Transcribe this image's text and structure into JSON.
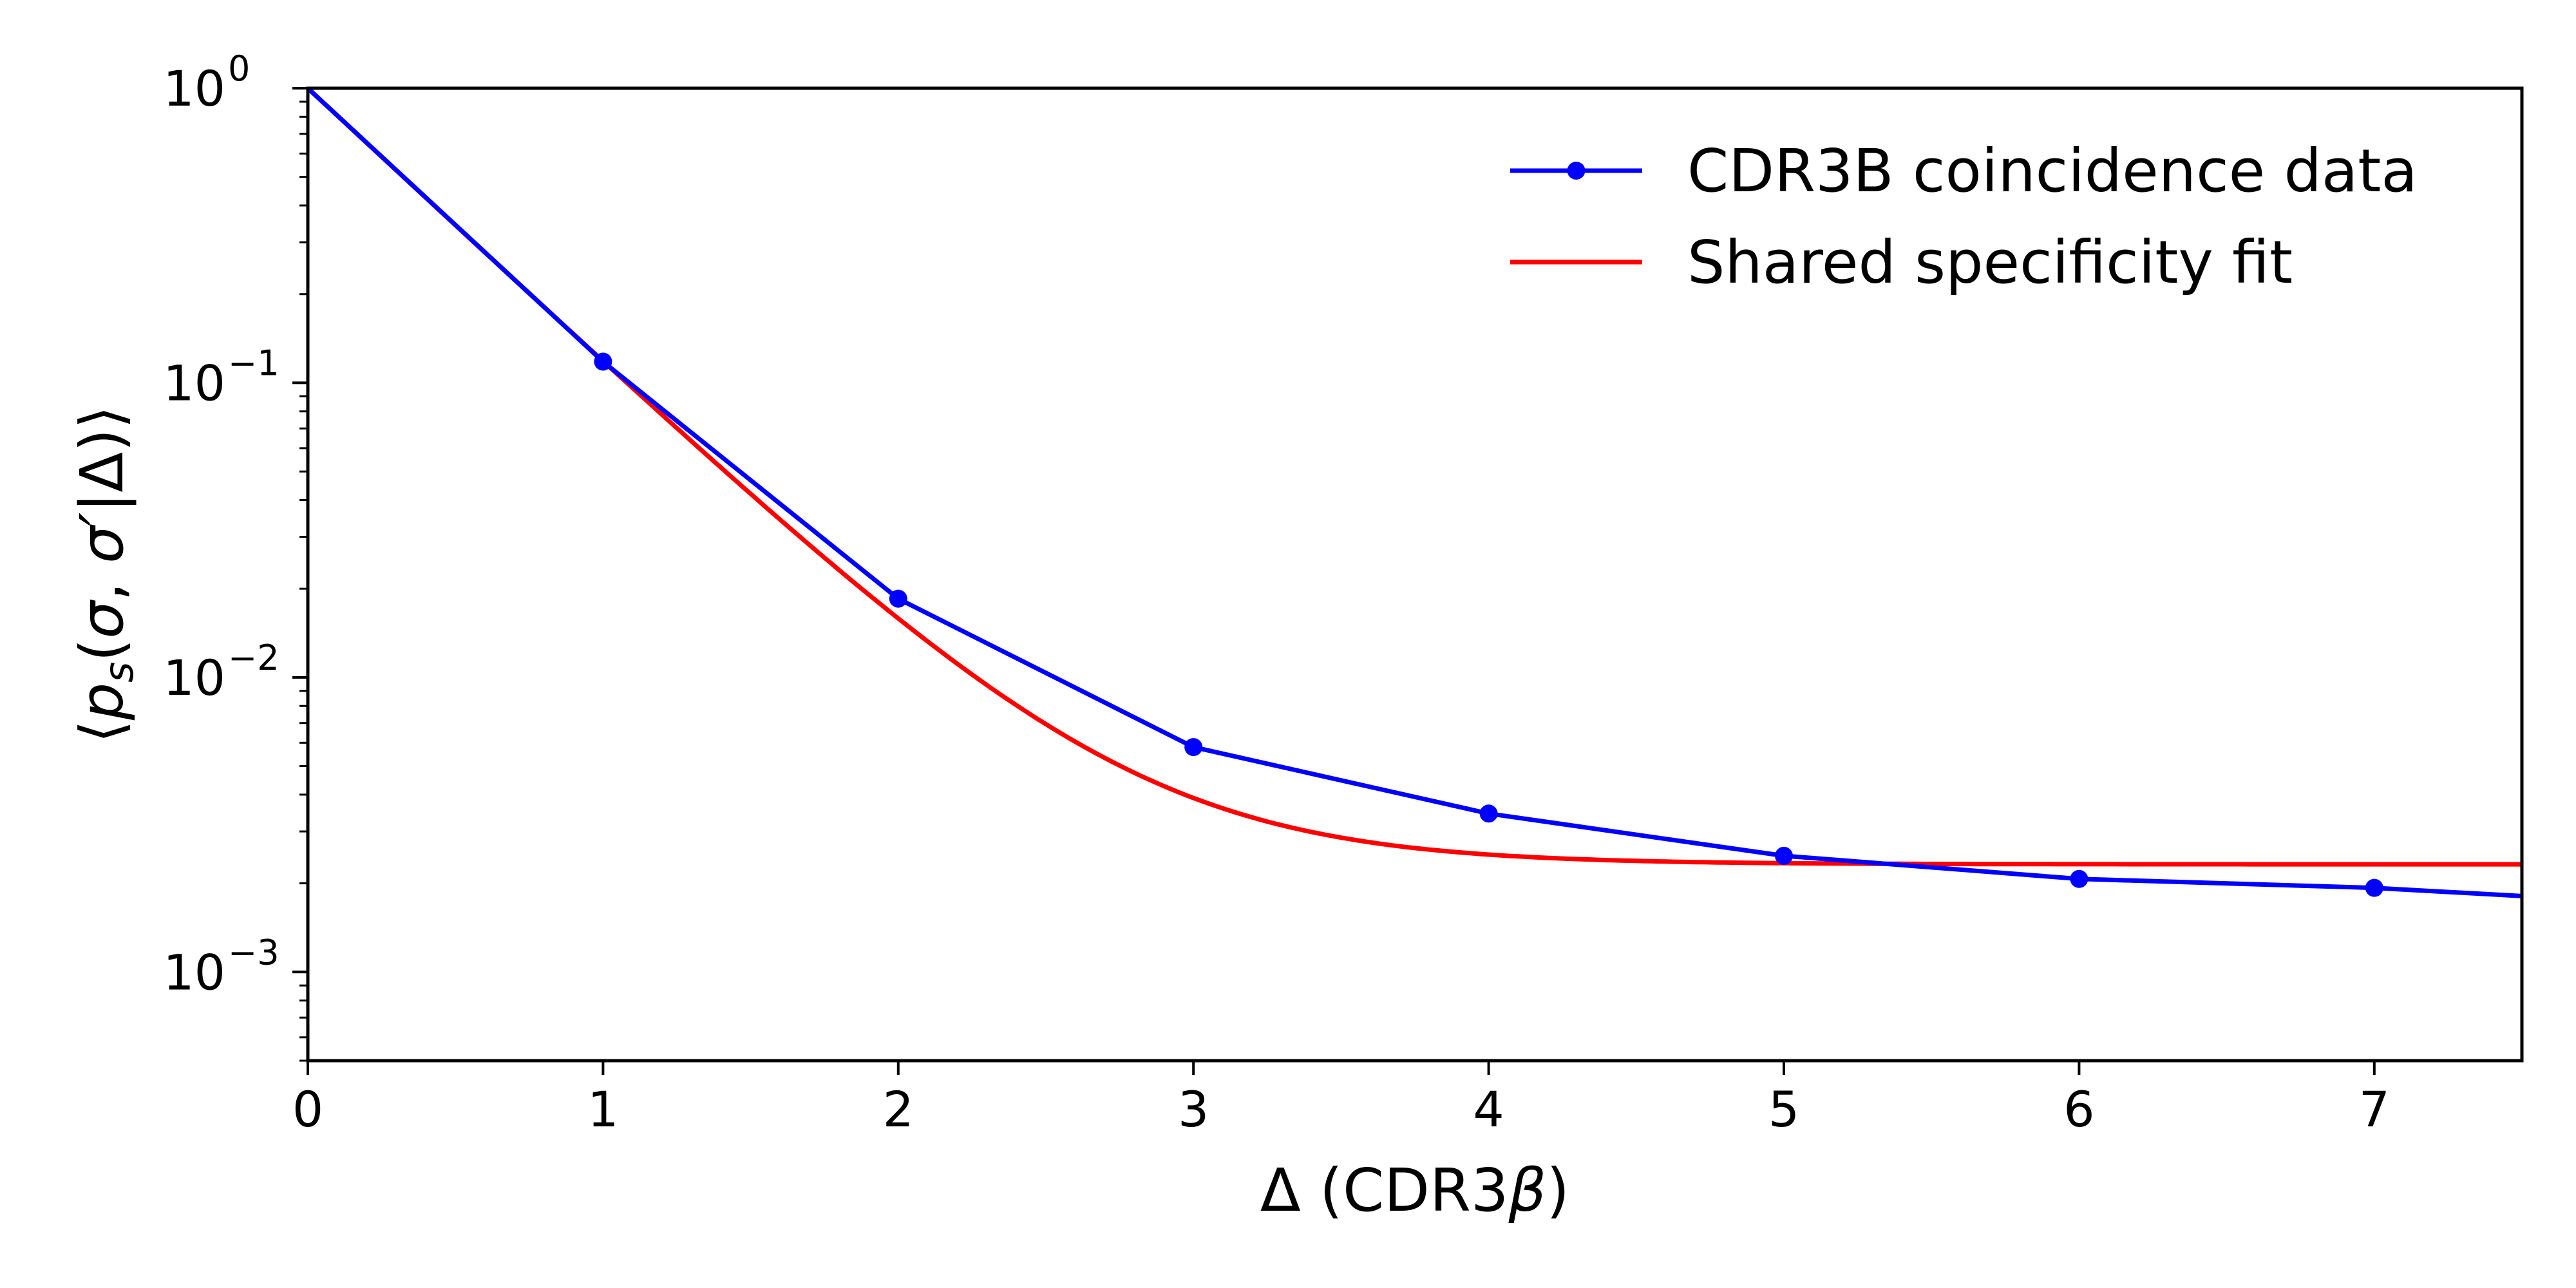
{
  "chart_data": {
    "type": "line",
    "title": "",
    "xlabel": "Δ (CDR3",
    "xlabel_symbol": "β",
    "xlabel_close": ")",
    "ylabel": "⟨p_s(σ, σ′|Δ)⟩",
    "ylabel_parts": {
      "open": "⟨",
      "p": "p",
      "sub": "s",
      "paren_open": "(",
      "sigma": "σ",
      "comma": ", ",
      "sigma_prime": "σ′",
      "bar": "|Δ",
      "paren_close": ")",
      "close": "⟩"
    },
    "xlim": [
      0,
      7.5
    ],
    "ylim": [
      0.0005,
      1
    ],
    "yscale": "log",
    "grid": false,
    "legend_position": "top-right",
    "x_ticks": [
      {
        "value": 0,
        "label": "0"
      },
      {
        "value": 1,
        "label": "1"
      },
      {
        "value": 2,
        "label": "2"
      },
      {
        "value": 3,
        "label": "3"
      },
      {
        "value": 4,
        "label": "4"
      },
      {
        "value": 5,
        "label": "5"
      },
      {
        "value": 6,
        "label": "6"
      },
      {
        "value": 7,
        "label": "7"
      }
    ],
    "y_ticks": [
      {
        "value": 1,
        "base": "10",
        "exp": "0"
      },
      {
        "value": 0.1,
        "base": "10",
        "exp": "−1"
      },
      {
        "value": 0.01,
        "base": "10",
        "exp": "−2"
      },
      {
        "value": 0.001,
        "base": "10",
        "exp": "−3"
      }
    ],
    "series": [
      {
        "name": "CDR3B coincidence data",
        "color": "#0000ff",
        "marker": "circle",
        "x": [
          0,
          1,
          2,
          3,
          4,
          5,
          6,
          7,
          7.5
        ],
        "y": [
          1.0,
          0.118,
          0.0185,
          0.0058,
          0.00345,
          0.00248,
          0.00207,
          0.00193,
          0.00181
        ],
        "marker_x": [
          1,
          2,
          3,
          4,
          5,
          6,
          7
        ]
      },
      {
        "name": "Shared specificity fit",
        "color": "#ff0000",
        "marker": "none",
        "fit": {
          "p0": 0.00232,
          "decay_rate": 2.15
        },
        "x_range": [
          0,
          7.5
        ]
      }
    ]
  }
}
